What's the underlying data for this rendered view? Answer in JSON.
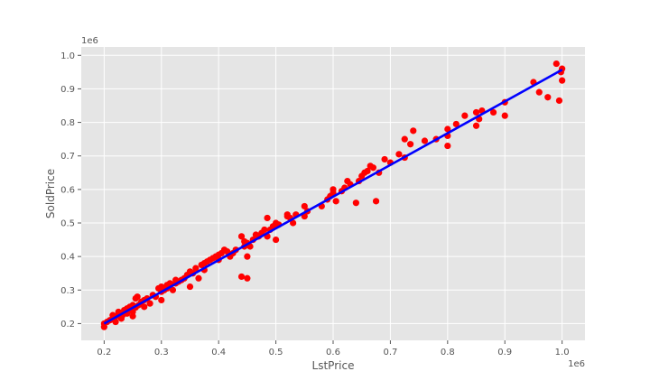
{
  "chart_data": {
    "type": "scatter",
    "title": "",
    "xlabel": "LstPrice",
    "ylabel": "SoldPrice",
    "x_offset_label": "1e6",
    "y_offset_label": "1e6",
    "xlim": [
      160000,
      1040000
    ],
    "ylim": [
      150000,
      1025000
    ],
    "xticks": [
      200000,
      300000,
      400000,
      500000,
      600000,
      700000,
      800000,
      900000,
      1000000
    ],
    "xtick_labels": [
      "0.2",
      "0.3",
      "0.4",
      "0.5",
      "0.6",
      "0.7",
      "0.8",
      "0.9",
      "1.0"
    ],
    "yticks": [
      200000,
      300000,
      400000,
      500000,
      600000,
      700000,
      800000,
      900000,
      1000000
    ],
    "ytick_labels": [
      "0.2",
      "0.3",
      "0.4",
      "0.5",
      "0.6",
      "0.7",
      "0.8",
      "0.9",
      "1.0"
    ],
    "grid": true,
    "style": "ggplot",
    "colors": {
      "points": "#ff0000",
      "fit_line": "#0000ff",
      "plot_bg": "#e5e5e5",
      "grid": "#ffffff"
    },
    "series": [
      {
        "kind": "points",
        "x": [
          200000,
          200000,
          205000,
          210000,
          215000,
          215000,
          220000,
          220000,
          225000,
          225000,
          230000,
          232000,
          235000,
          235000,
          240000,
          240000,
          245000,
          245000,
          250000,
          250000,
          250000,
          255000,
          255000,
          258000,
          260000,
          265000,
          270000,
          270000,
          275000,
          280000,
          285000,
          290000,
          295000,
          300000,
          300000,
          300000,
          305000,
          310000,
          310000,
          315000,
          320000,
          325000,
          325000,
          330000,
          335000,
          340000,
          345000,
          350000,
          350000,
          355000,
          360000,
          365000,
          370000,
          375000,
          375000,
          380000,
          385000,
          390000,
          395000,
          400000,
          400000,
          405000,
          410000,
          415000,
          420000,
          425000,
          430000,
          440000,
          440000,
          445000,
          445000,
          450000,
          450000,
          450000,
          455000,
          460000,
          465000,
          470000,
          475000,
          480000,
          485000,
          485000,
          490000,
          495000,
          500000,
          500000,
          505000,
          520000,
          520000,
          525000,
          530000,
          535000,
          550000,
          550000,
          555000,
          580000,
          590000,
          595000,
          600000,
          600000,
          605000,
          615000,
          620000,
          625000,
          630000,
          640000,
          645000,
          650000,
          655000,
          660000,
          665000,
          670000,
          675000,
          680000,
          690000,
          700000,
          715000,
          725000,
          725000,
          735000,
          740000,
          760000,
          780000,
          800000,
          800000,
          800000,
          815000,
          830000,
          850000,
          850000,
          855000,
          860000,
          880000,
          900000,
          900000,
          950000,
          960000,
          975000,
          990000,
          995000,
          998000,
          1000000,
          1000000
        ],
        "y": [
          190000,
          200000,
          205000,
          210000,
          225000,
          215000,
          205000,
          220000,
          235000,
          230000,
          215000,
          225000,
          240000,
          232000,
          245000,
          230000,
          250000,
          240000,
          235000,
          222000,
          255000,
          248000,
          275000,
          280000,
          255000,
          265000,
          270000,
          250000,
          275000,
          260000,
          285000,
          280000,
          305000,
          270000,
          295000,
          310000,
          300000,
          315000,
          305000,
          320000,
          300000,
          330000,
          320000,
          325000,
          330000,
          335000,
          345000,
          310000,
          355000,
          350000,
          365000,
          335000,
          375000,
          360000,
          380000,
          385000,
          390000,
          395000,
          400000,
          405000,
          390000,
          410000,
          420000,
          415000,
          400000,
          410000,
          420000,
          460000,
          340000,
          430000,
          445000,
          400000,
          335000,
          440000,
          430000,
          450000,
          465000,
          460000,
          470000,
          480000,
          515000,
          460000,
          480000,
          490000,
          500000,
          450000,
          495000,
          520000,
          525000,
          515000,
          500000,
          525000,
          550000,
          520000,
          535000,
          550000,
          570000,
          580000,
          600000,
          590000,
          565000,
          595000,
          605000,
          625000,
          615000,
          560000,
          625000,
          640000,
          650000,
          655000,
          670000,
          665000,
          565000,
          650000,
          690000,
          680000,
          705000,
          695000,
          750000,
          735000,
          775000,
          745000,
          750000,
          780000,
          730000,
          760000,
          795000,
          820000,
          830000,
          790000,
          810000,
          835000,
          830000,
          860000,
          820000,
          920000,
          890000,
          875000,
          975000,
          865000,
          950000,
          960000,
          925000
        ]
      },
      {
        "kind": "fit_line",
        "x": [
          200000,
          1000000
        ],
        "y": [
          200000,
          957000
        ]
      }
    ]
  }
}
